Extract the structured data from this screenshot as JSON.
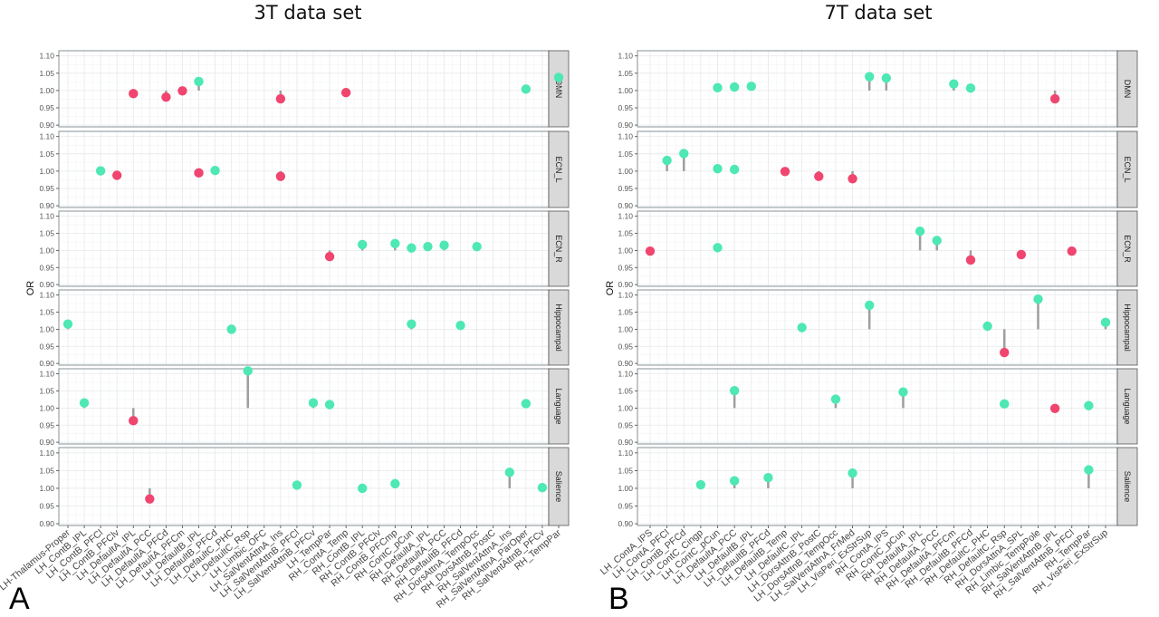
{
  "chart_data": [
    {
      "type": "scatter",
      "subtype": "lollipop-faceted",
      "panel_label": "A",
      "title": "3T data set",
      "xlabel": "",
      "ylabel": "OR",
      "ylim": [
        0.895,
        1.115
      ],
      "yticks": [
        0.9,
        0.95,
        1.0,
        1.05,
        1.1
      ],
      "ytick_labels": [
        "0.90",
        "0.95",
        "1.00",
        "1.05",
        "1.10"
      ],
      "baseline": 1.0,
      "grid": true,
      "colors": {
        "positive": "#4de8b4",
        "negative": "#f0456e",
        "stem": "#9e9e9e"
      },
      "facets": [
        "DMN",
        "ECN_L",
        "ECN_R",
        "Hippocampal",
        "Language",
        "Salience"
      ],
      "categories": [
        "LH-Thalamus-Proper",
        "LH_ContB_IPL",
        "LH_ContB_PFCl",
        "LH_ContB_PFClv",
        "LH_DefaultA_IPL",
        "LH_DefaultA_PCC",
        "LH_DefaultA_PFCd",
        "LH_DefaultA_PFCm",
        "LH_DefaultB_IPL",
        "LH_DefaultB_PFCd",
        "LH_DefaultC_PHC",
        "LH_DefaultC_Rsp",
        "LH_Limbic_OFC",
        "LH_SalVentAttnA_Ins",
        "LH_SalVentAttnB_PFCl",
        "LH_SalVentAttnB_PFCv",
        "LH_TempPar",
        "RH_ContA_Temp",
        "RH_ContB_IPL",
        "RH_ContB_PFClv",
        "RH_ContB_PFCmp",
        "RH_ContC_pCun",
        "RH_DefaultA_IPL",
        "RH_DefaultA_PCC",
        "RH_DefaultB_PFCd",
        "RH_DorsAttnA_TempOcc",
        "RH_DorsAttnB_PostC",
        "RH_SalVentAttnA_Ins",
        "RH_SalVentAttnA_ParOper",
        "RH_SalVentAttnB_PFCv",
        "RH_TempPar"
      ],
      "points": [
        {
          "facet": "DMN",
          "category": "LH_DefaultA_IPL",
          "value": 0.991
        },
        {
          "facet": "DMN",
          "category": "LH_DefaultA_PFCd",
          "value": 0.981
        },
        {
          "facet": "DMN",
          "category": "LH_DefaultA_PFCm",
          "value": 0.999
        },
        {
          "facet": "DMN",
          "category": "LH_DefaultB_IPL",
          "value": 1.026
        },
        {
          "facet": "DMN",
          "category": "LH_SalVentAttnA_Ins",
          "value": 0.976
        },
        {
          "facet": "DMN",
          "category": "RH_ContA_Temp",
          "value": 0.994
        },
        {
          "facet": "DMN",
          "category": "RH_SalVentAttnA_ParOper",
          "value": 1.004
        },
        {
          "facet": "DMN",
          "category": "RH_TempPar",
          "value": 1.038
        },
        {
          "facet": "ECN_L",
          "category": "LH_ContB_PFCl",
          "value": 1.001
        },
        {
          "facet": "ECN_L",
          "category": "LH_ContB_PFClv",
          "value": 0.988
        },
        {
          "facet": "ECN_L",
          "category": "LH_DefaultB_IPL",
          "value": 0.995
        },
        {
          "facet": "ECN_L",
          "category": "LH_DefaultB_PFCd",
          "value": 1.002
        },
        {
          "facet": "ECN_L",
          "category": "LH_SalVentAttnA_Ins",
          "value": 0.985
        },
        {
          "facet": "ECN_R",
          "category": "LH_TempPar",
          "value": 0.982
        },
        {
          "facet": "ECN_R",
          "category": "RH_ContB_IPL",
          "value": 1.017
        },
        {
          "facet": "ECN_R",
          "category": "RH_ContB_PFCmp",
          "value": 1.02
        },
        {
          "facet": "ECN_R",
          "category": "RH_ContC_pCun",
          "value": 1.007
        },
        {
          "facet": "ECN_R",
          "category": "RH_DefaultA_IPL",
          "value": 1.011
        },
        {
          "facet": "ECN_R",
          "category": "RH_DefaultA_PCC",
          "value": 1.015
        },
        {
          "facet": "ECN_R",
          "category": "RH_DorsAttnA_TempOcc",
          "value": 1.011
        },
        {
          "facet": "Hippocampal",
          "category": "LH-Thalamus-Proper",
          "value": 1.015
        },
        {
          "facet": "Hippocampal",
          "category": "LH_DefaultC_PHC",
          "value": 1.0
        },
        {
          "facet": "Hippocampal",
          "category": "RH_ContC_pCun",
          "value": 1.015
        },
        {
          "facet": "Hippocampal",
          "category": "RH_DefaultB_PFCd",
          "value": 1.011
        },
        {
          "facet": "Language",
          "category": "LH_ContB_IPL",
          "value": 1.015
        },
        {
          "facet": "Language",
          "category": "LH_DefaultA_IPL",
          "value": 0.963
        },
        {
          "facet": "Language",
          "category": "LH_DefaultC_Rsp",
          "value": 1.109
        },
        {
          "facet": "Language",
          "category": "LH_SalVentAttnB_PFCv",
          "value": 1.015
        },
        {
          "facet": "Language",
          "category": "LH_TempPar",
          "value": 1.01
        },
        {
          "facet": "Language",
          "category": "RH_SalVentAttnA_ParOper",
          "value": 1.013
        },
        {
          "facet": "Salience",
          "category": "LH_DefaultA_PCC",
          "value": 0.97
        },
        {
          "facet": "Salience",
          "category": "LH_SalVentAttnB_PFCl",
          "value": 1.009
        },
        {
          "facet": "Salience",
          "category": "RH_ContB_IPL",
          "value": 1.0
        },
        {
          "facet": "Salience",
          "category": "RH_ContB_PFCmp",
          "value": 1.013
        },
        {
          "facet": "Salience",
          "category": "RH_SalVentAttnA_Ins",
          "value": 1.045
        },
        {
          "facet": "Salience",
          "category": "RH_SalVentAttnB_PFCv",
          "value": 1.002
        }
      ]
    },
    {
      "type": "scatter",
      "subtype": "lollipop-faceted",
      "panel_label": "B",
      "title": "7T data set",
      "xlabel": "",
      "ylabel": "OR",
      "ylim": [
        0.895,
        1.115
      ],
      "yticks": [
        0.9,
        0.95,
        1.0,
        1.05,
        1.1
      ],
      "ytick_labels": [
        "0.90",
        "0.95",
        "1.00",
        "1.05",
        "1.10"
      ],
      "baseline": 1.0,
      "grid": true,
      "colors": {
        "positive": "#4de8b4",
        "negative": "#f0456e",
        "stem": "#9e9e9e"
      },
      "facets": [
        "DMN",
        "ECN_L",
        "ECN_R",
        "Hippocampal",
        "Language",
        "Salience"
      ],
      "categories": [
        "LH_ContA_IPS",
        "LH_ContA_PFCl",
        "LH_ContB_PFCd",
        "LH_ContC_Cingp",
        "LH_ContC_pCun",
        "LH_DefaultA_PCC",
        "LH_DefaultB_IPL",
        "LH_DefaultB_PFCd",
        "LH_DefaultB_Temp",
        "LH_DefaultC_IPL",
        "LH_DorsAttnB_PostC",
        "LH_DorsAttnB_TempOcc",
        "LH_SalVentAttnA_FrMed",
        "LH_VisPeri_ExStrSup",
        "RH_ContA_IPS",
        "RH_ContC_pCun",
        "RH_DefaultA_IPL",
        "RH_DefaultA_PCC",
        "RH_DefaultA_PFCm",
        "RH_DefaultB_PFCd",
        "RH_DefaultC_PHC",
        "RH_DefaultC_Rsp",
        "RH_DorsAttnA_SPL",
        "RH_Limbic_TempPole",
        "RH_SalVentAttnB_IPL",
        "RH_SalVentAttnB_PFCl",
        "RH_TempPar",
        "RH_VisPeri_ExStrSup"
      ],
      "points": [
        {
          "facet": "DMN",
          "category": "LH_ContC_pCun",
          "value": 1.008
        },
        {
          "facet": "DMN",
          "category": "LH_DefaultA_PCC",
          "value": 1.01
        },
        {
          "facet": "DMN",
          "category": "LH_DefaultB_IPL",
          "value": 1.012
        },
        {
          "facet": "DMN",
          "category": "LH_VisPeri_ExStrSup",
          "value": 1.04
        },
        {
          "facet": "DMN",
          "category": "RH_ContA_IPS",
          "value": 1.036
        },
        {
          "facet": "DMN",
          "category": "RH_DefaultA_PFCm",
          "value": 1.019
        },
        {
          "facet": "DMN",
          "category": "RH_DefaultB_PFCd",
          "value": 1.007
        },
        {
          "facet": "DMN",
          "category": "RH_SalVentAttnB_IPL",
          "value": 0.976
        },
        {
          "facet": "ECN_L",
          "category": "LH_ContA_PFCl",
          "value": 1.031
        },
        {
          "facet": "ECN_L",
          "category": "LH_ContB_PFCd",
          "value": 1.051
        },
        {
          "facet": "ECN_L",
          "category": "LH_ContC_pCun",
          "value": 1.007
        },
        {
          "facet": "ECN_L",
          "category": "LH_DefaultA_PCC",
          "value": 1.005
        },
        {
          "facet": "ECN_L",
          "category": "LH_DefaultB_Temp",
          "value": 0.999
        },
        {
          "facet": "ECN_L",
          "category": "LH_DorsAttnB_PostC",
          "value": 0.985
        },
        {
          "facet": "ECN_L",
          "category": "LH_SalVentAttnA_FrMed",
          "value": 0.978
        },
        {
          "facet": "ECN_R",
          "category": "LH_ContA_IPS",
          "value": 0.998
        },
        {
          "facet": "ECN_R",
          "category": "LH_ContC_pCun",
          "value": 1.008
        },
        {
          "facet": "ECN_R",
          "category": "RH_DefaultA_IPL",
          "value": 1.056
        },
        {
          "facet": "ECN_R",
          "category": "RH_DefaultA_PCC",
          "value": 1.029
        },
        {
          "facet": "ECN_R",
          "category": "RH_DefaultB_PFCd",
          "value": 0.972
        },
        {
          "facet": "ECN_R",
          "category": "RH_DorsAttnA_SPL",
          "value": 0.988
        },
        {
          "facet": "ECN_R",
          "category": "RH_SalVentAttnB_PFCl",
          "value": 0.998
        },
        {
          "facet": "Hippocampal",
          "category": "LH_DefaultC_IPL",
          "value": 1.005
        },
        {
          "facet": "Hippocampal",
          "category": "LH_VisPeri_ExStrSup",
          "value": 1.07
        },
        {
          "facet": "Hippocampal",
          "category": "RH_DefaultC_PHC",
          "value": 1.009
        },
        {
          "facet": "Hippocampal",
          "category": "RH_DefaultC_Rsp",
          "value": 0.932
        },
        {
          "facet": "Hippocampal",
          "category": "RH_Limbic_TempPole",
          "value": 1.088
        },
        {
          "facet": "Hippocampal",
          "category": "RH_VisPeri_ExStrSup",
          "value": 1.02
        },
        {
          "facet": "Language",
          "category": "LH_DefaultA_PCC",
          "value": 1.051
        },
        {
          "facet": "Language",
          "category": "LH_DorsAttnB_TempOcc",
          "value": 1.026
        },
        {
          "facet": "Language",
          "category": "RH_ContC_pCun",
          "value": 1.047
        },
        {
          "facet": "Language",
          "category": "RH_DefaultC_Rsp",
          "value": 1.012
        },
        {
          "facet": "Language",
          "category": "RH_SalVentAttnB_IPL",
          "value": 0.999
        },
        {
          "facet": "Language",
          "category": "RH_TempPar",
          "value": 1.007
        },
        {
          "facet": "Salience",
          "category": "LH_ContC_Cingp",
          "value": 1.01
        },
        {
          "facet": "Salience",
          "category": "LH_DefaultA_PCC",
          "value": 1.021
        },
        {
          "facet": "Salience",
          "category": "LH_DefaultB_PFCd",
          "value": 1.03
        },
        {
          "facet": "Salience",
          "category": "LH_SalVentAttnA_FrMed",
          "value": 1.043
        },
        {
          "facet": "Salience",
          "category": "RH_TempPar",
          "value": 1.052
        }
      ]
    }
  ]
}
